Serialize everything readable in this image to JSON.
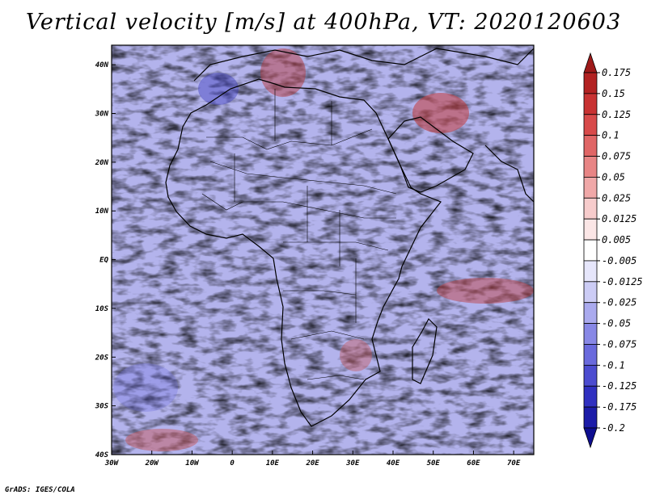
{
  "title": "Vertical velocity [m/s] at 400hPa, VT: 2020120603",
  "credit": "GrADS: IGES/COLA",
  "map": {
    "lon_labels": [
      "30W",
      "20W",
      "10W",
      "0",
      "10E",
      "20E",
      "30E",
      "40E",
      "50E",
      "60E",
      "70E"
    ],
    "lat_labels": [
      "40N",
      "30N",
      "20N",
      "10N",
      "EQ",
      "10S",
      "20S",
      "30S",
      "40S"
    ],
    "lon_range": [
      -30,
      75
    ],
    "lat_range": [
      -40,
      44
    ]
  },
  "colorbar": {
    "labels": [
      "0.175",
      "0.15",
      "0.125",
      "0.1",
      "0.075",
      "0.05",
      "0.025",
      "0.0125",
      "0.005",
      "-0.005",
      "-0.0125",
      "-0.025",
      "-0.05",
      "-0.075",
      "-0.1",
      "-0.125",
      "-0.175",
      "-0.2"
    ],
    "colors": [
      "#9e1a1a",
      "#b22222",
      "#c83232",
      "#d84a4a",
      "#e06666",
      "#e88585",
      "#f0a8a8",
      "#f7cccc",
      "#fbe6e6",
      "#ffffff",
      "#e6e6fb",
      "#ccccf5",
      "#aaaaee",
      "#8888e6",
      "#6a6add",
      "#4c4cd0",
      "#3030c0",
      "#1c1ca8",
      "#0e0e90"
    ]
  }
}
